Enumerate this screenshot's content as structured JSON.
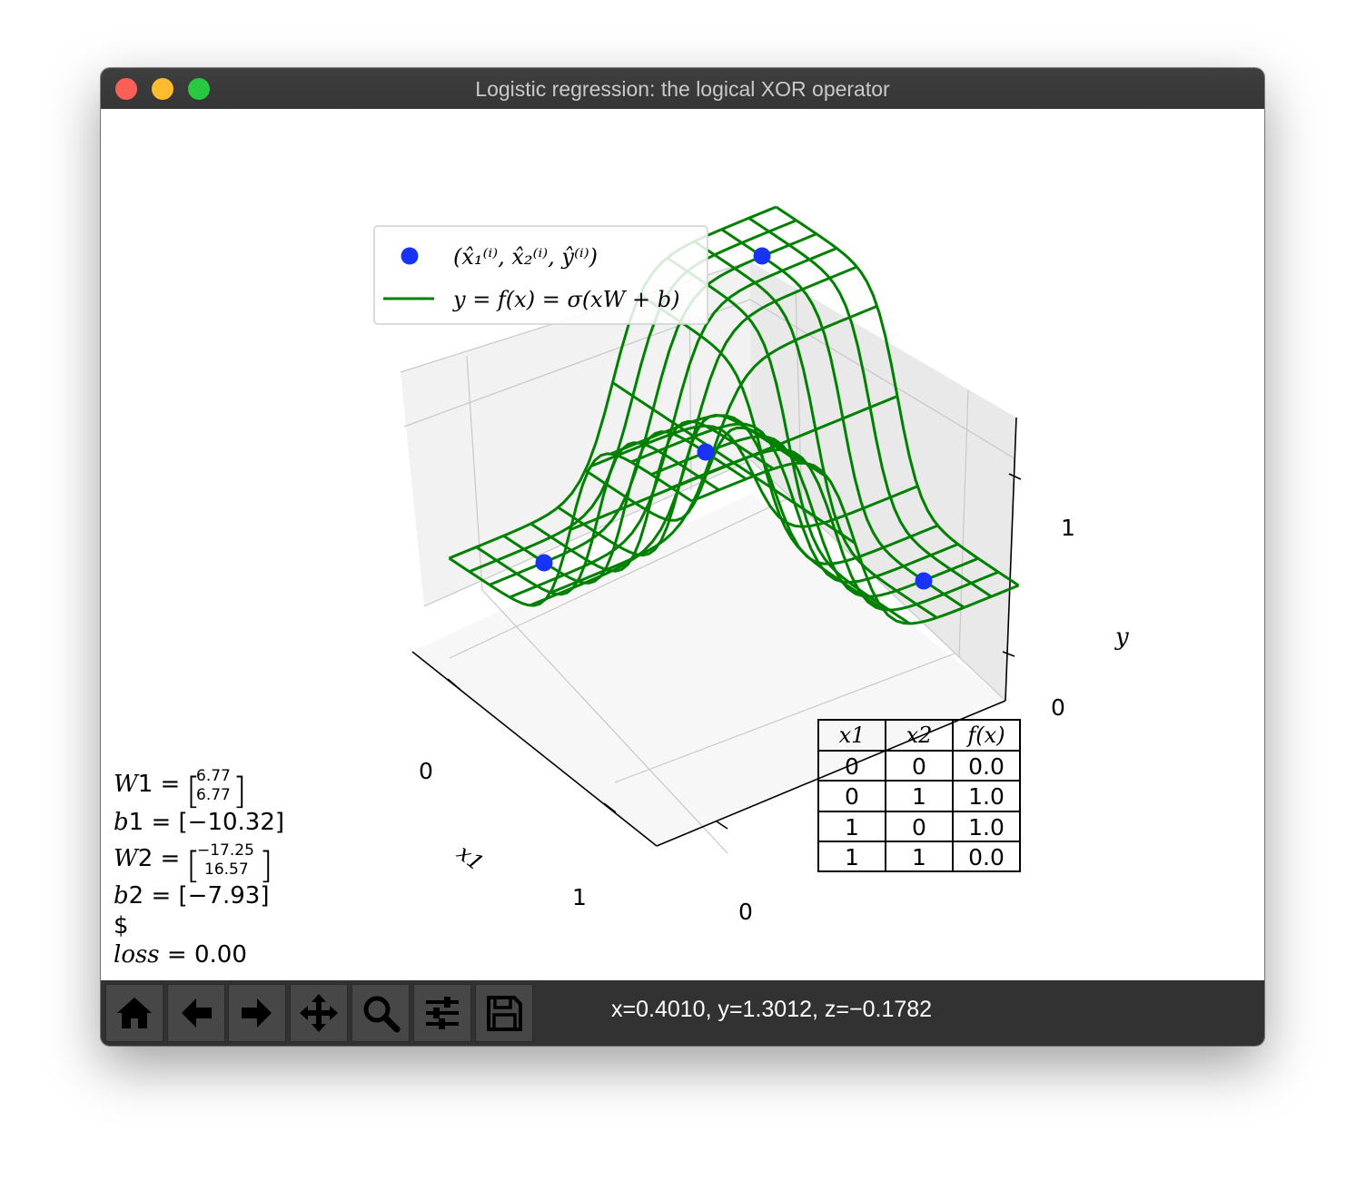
{
  "window": {
    "title": "Logistic regression: the logical XOR operator"
  },
  "toolbar": {
    "buttons": [
      {
        "name": "home",
        "icon": "home-icon"
      },
      {
        "name": "back",
        "icon": "arrow-left-icon"
      },
      {
        "name": "forward",
        "icon": "arrow-right-icon"
      },
      {
        "name": "pan",
        "icon": "move-icon"
      },
      {
        "name": "zoom",
        "icon": "magnifier-icon"
      },
      {
        "name": "configure-subplots",
        "icon": "sliders-icon"
      },
      {
        "name": "save",
        "icon": "floppy-disk-icon"
      }
    ],
    "coordinates": "x=0.4010, y=1.3012, z=−0.1782"
  },
  "chart_data": {
    "type": "surface3d",
    "legend": {
      "placement": "upper-left",
      "entries": [
        {
          "label": "(x̂₁⁽ⁱ⁾, x̂₂⁽ⁱ⁾, ŷ⁽ⁱ⁾)",
          "marker": "circle",
          "color": "#1733f5"
        },
        {
          "label": "y = f(x) = σ(xW + b)",
          "marker": "line",
          "color": "#008000"
        }
      ]
    },
    "axes": {
      "x1": {
        "label": "x1",
        "ticks": [
          "0",
          "1"
        ]
      },
      "x2": {
        "label": "",
        "ticks": [
          "0"
        ]
      },
      "y": {
        "label": "y",
        "ticks": [
          "0",
          "1"
        ]
      },
      "grid": true
    },
    "points": [
      {
        "x1": 0,
        "x2": 0,
        "y": 0
      },
      {
        "x1": 0,
        "x2": 1,
        "y": 1
      },
      {
        "x1": 1,
        "x2": 0,
        "y": 1
      },
      {
        "x1": 1,
        "x2": 1,
        "y": 0
      }
    ],
    "surface": {
      "x1_range": [
        -0.25,
        1.25
      ],
      "x2_range": [
        -0.25,
        1.25
      ],
      "grid_lines": 13,
      "color": "#008000"
    },
    "parameters": {
      "W1": [
        "6.77",
        "6.77"
      ],
      "b1": "[−10.32]",
      "W2": [
        "−17.25",
        "16.57"
      ],
      "b2": "[−7.93]",
      "extra": "$",
      "loss": "0.00"
    },
    "truth_table": {
      "headers": [
        "x1",
        "x2",
        "f(x)"
      ],
      "rows": [
        [
          "0",
          "0",
          "0.0"
        ],
        [
          "0",
          "1",
          "1.0"
        ],
        [
          "1",
          "0",
          "1.0"
        ],
        [
          "1",
          "1",
          "0.0"
        ]
      ]
    }
  }
}
